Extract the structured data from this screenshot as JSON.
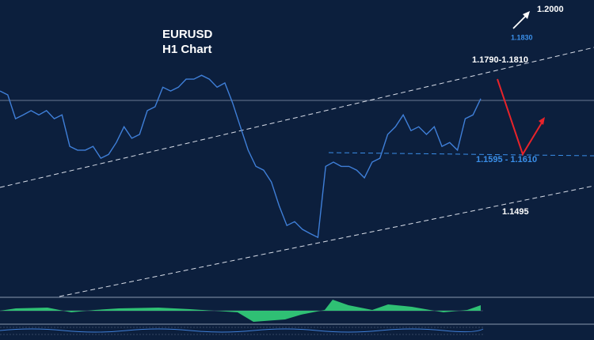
{
  "chart_data": {
    "type": "line",
    "title": "EURUSD",
    "subtitle": "H1 Chart",
    "ylim": [
      1.1272,
      1.1969
    ],
    "series": [
      {
        "name": "EURUSD",
        "color": "#3f7fd8",
        "values": [
          1.1755,
          1.1746,
          1.169,
          1.1699,
          1.1709,
          1.1699,
          1.1709,
          1.169,
          1.1699,
          1.1625,
          1.1616,
          1.1616,
          1.1625,
          1.1597,
          1.1606,
          1.1634,
          1.1671,
          1.1644,
          1.1653,
          1.1709,
          1.1718,
          1.1764,
          1.1755,
          1.1764,
          1.1783,
          1.1783,
          1.1792,
          1.1783,
          1.1764,
          1.1774,
          1.1727,
          1.1671,
          1.1616,
          1.1578,
          1.1569,
          1.1541,
          1.1485,
          1.1439,
          1.1448,
          1.143,
          1.142,
          1.1411,
          1.1578,
          1.1588,
          1.1578,
          1.1578,
          1.1569,
          1.1551,
          1.1588,
          1.1597,
          1.1653,
          1.1671,
          1.1699,
          1.1662,
          1.1671,
          1.1653,
          1.1671,
          1.1625,
          1.1634,
          1.1616,
          1.169,
          1.1699,
          1.1737
        ]
      }
    ],
    "annotations": [
      "1.2000",
      "1.1830",
      "1.1790-1.1810",
      "1.1595 - 1.1610",
      "1.1495"
    ]
  }
}
